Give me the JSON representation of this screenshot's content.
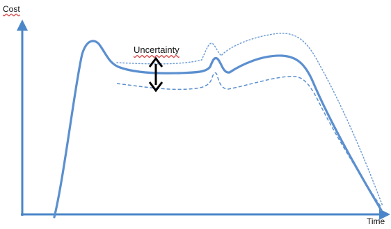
{
  "diagram": {
    "y_axis_label": "Cost",
    "x_axis_label": "Time",
    "annotation_label": "Uncertainty",
    "colors": {
      "curve": "#5b8fcf",
      "axis": "#4a86c8",
      "arrow": "#000000",
      "spellcheck_underline": "#d64040"
    },
    "curves": [
      {
        "name": "main-cost-curve",
        "style": "solid"
      },
      {
        "name": "upper-bound-curve",
        "style": "dotted"
      },
      {
        "name": "lower-bound-curve",
        "style": "dashed"
      }
    ]
  }
}
